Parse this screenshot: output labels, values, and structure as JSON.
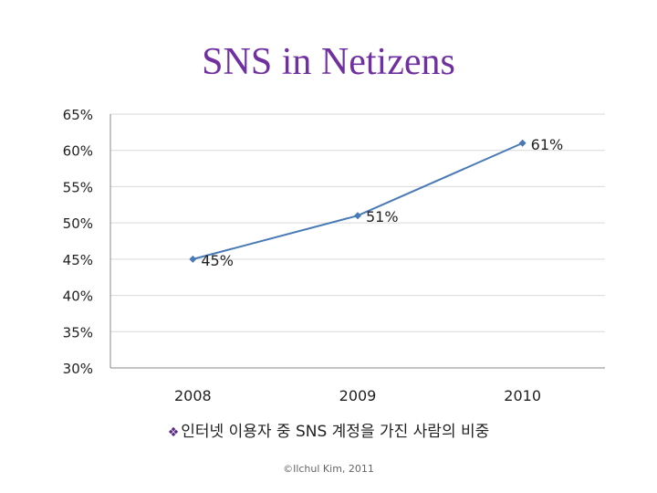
{
  "title": "SNS in Netizens",
  "caption": {
    "bullet_icon": "diamond-bullet-icon",
    "text": "인터넷 이용자 중 SNS 계정을 가진 사람의 비중"
  },
  "footer": "©Ilchul Kim, 2011",
  "colors": {
    "title": "#7030a0",
    "line": "#4a7ab5",
    "grid": "#d9d9d9"
  },
  "chart_data": {
    "type": "line",
    "categories": [
      "2008",
      "2009",
      "2010"
    ],
    "series": [
      {
        "values": [
          45,
          51,
          61
        ],
        "labels": [
          "45%",
          "51%",
          "61%"
        ]
      }
    ],
    "ylim": [
      30,
      65
    ],
    "yticks": [
      "30%",
      "35%",
      "40%",
      "45%",
      "50%",
      "55%",
      "60%",
      "65%"
    ],
    "grid": true,
    "legend": "none"
  }
}
